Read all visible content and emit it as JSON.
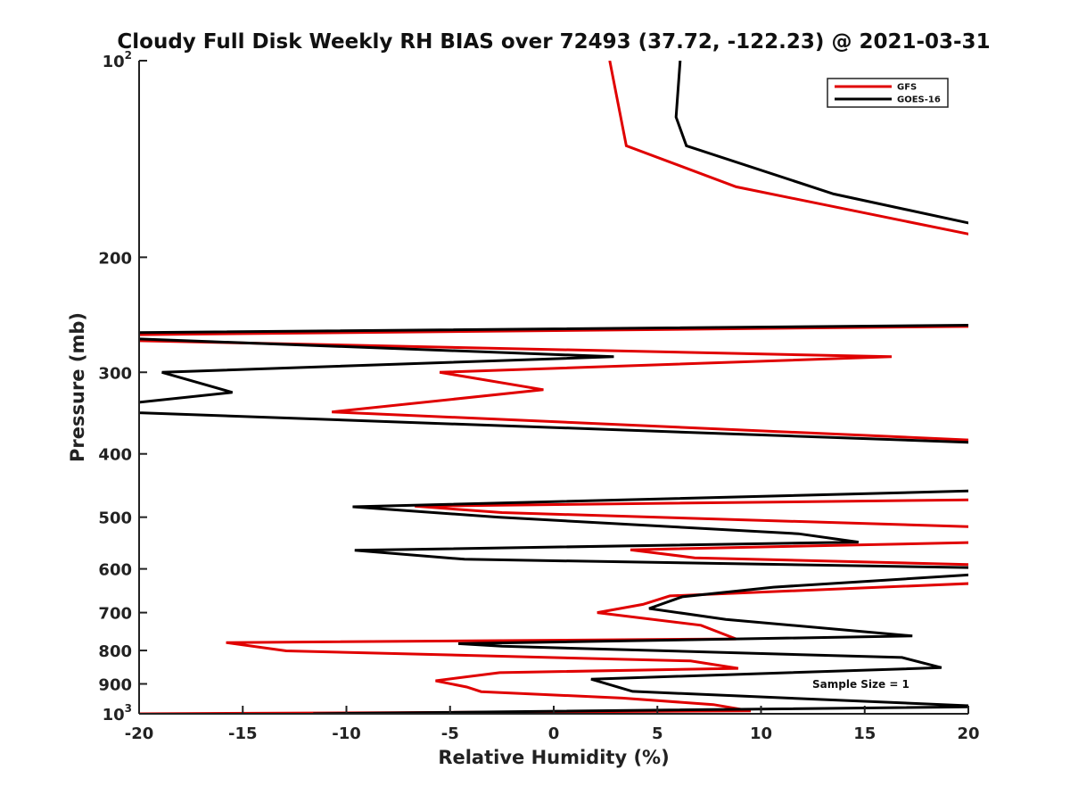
{
  "chart_data": {
    "type": "line",
    "title": "Cloudy Full Disk Weekly RH BIAS over 72493 (37.72, -122.23) @ 2021-03-31",
    "xlabel": "Relative Humidity (%)",
    "ylabel": "Pressure (mb)",
    "xlim": [
      -20,
      20
    ],
    "ylim": [
      100,
      1000
    ],
    "yscale": "log",
    "y_reversed": true,
    "x_ticks": [
      "-20",
      "-15",
      "-10",
      "-5",
      "0",
      "5",
      "10",
      "15",
      "20"
    ],
    "y_ticks": [
      {
        "value": 100,
        "base": "10",
        "exp": "2"
      },
      {
        "value": 200,
        "label": "200"
      },
      {
        "value": 300,
        "label": "300"
      },
      {
        "value": 400,
        "label": "400"
      },
      {
        "value": 500,
        "label": "500"
      },
      {
        "value": 600,
        "label": "600"
      },
      {
        "value": 700,
        "label": "700"
      },
      {
        "value": 800,
        "label": "800"
      },
      {
        "value": 900,
        "label": "900"
      },
      {
        "value": 1000,
        "base": "10",
        "exp": "3"
      }
    ],
    "legend_position": "top-right",
    "annotation": "Sample Size = 1",
    "grid": false,
    "series": [
      {
        "name": "GFS",
        "color": "#e00000",
        "points": [
          [
            2.7,
            100
          ],
          [
            3.5,
            135
          ],
          [
            8.8,
            156
          ],
          [
            21,
            187
          ],
          [
            21,
            255
          ],
          [
            -21,
            263
          ],
          [
            -21,
            268
          ],
          [
            16.3,
            284
          ],
          [
            -5.5,
            300
          ],
          [
            -0.5,
            319
          ],
          [
            -10.7,
            345
          ],
          [
            21,
            382
          ],
          [
            21,
            470
          ],
          [
            -6.7,
            481
          ],
          [
            -2.5,
            492
          ],
          [
            21,
            518
          ],
          [
            21,
            546
          ],
          [
            3.7,
            561
          ],
          [
            6.8,
            577
          ],
          [
            21,
            592
          ],
          [
            21,
            630
          ],
          [
            5.6,
            660
          ],
          [
            4.3,
            680
          ],
          [
            2.1,
            700
          ],
          [
            7.1,
            732
          ],
          [
            8.8,
            768
          ],
          [
            -15.8,
            778
          ],
          [
            -12.9,
            801
          ],
          [
            6.6,
            830
          ],
          [
            8.9,
            852
          ],
          [
            -2.6,
            865
          ],
          [
            -5.7,
            890
          ],
          [
            -4.2,
            910
          ],
          [
            -3.5,
            925
          ],
          [
            3.3,
            946
          ],
          [
            7.7,
            968
          ],
          [
            9.5,
            990
          ],
          [
            -20,
            1000
          ]
        ]
      },
      {
        "name": "GOES-16",
        "color": "#000000",
        "points": [
          [
            6.1,
            100
          ],
          [
            5.9,
            122
          ],
          [
            6.4,
            135
          ],
          [
            13.5,
            160
          ],
          [
            21,
            180
          ],
          [
            21,
            254
          ],
          [
            -21,
            261
          ],
          [
            -21,
            266
          ],
          [
            2.9,
            284
          ],
          [
            -18.9,
            300
          ],
          [
            -15.5,
            322
          ],
          [
            -21,
            336
          ],
          [
            -20,
            346
          ],
          [
            21,
            385
          ],
          [
            21,
            455
          ],
          [
            -9.7,
            482
          ],
          [
            -2.7,
            500
          ],
          [
            11.8,
            530
          ],
          [
            14.7,
            546
          ],
          [
            -9.6,
            562
          ],
          [
            -4.3,
            580
          ],
          [
            21,
            598
          ],
          [
            21,
            610
          ],
          [
            10.6,
            640
          ],
          [
            6.2,
            662
          ],
          [
            4.6,
            690
          ],
          [
            8.3,
            717
          ],
          [
            17.3,
            760
          ],
          [
            -4.6,
            781
          ],
          [
            -2.5,
            788
          ],
          [
            16.8,
            820
          ],
          [
            18.7,
            850
          ],
          [
            1.8,
            885
          ],
          [
            3.8,
            924
          ],
          [
            21,
            975
          ],
          [
            -11.6,
            1000
          ]
        ]
      }
    ]
  }
}
